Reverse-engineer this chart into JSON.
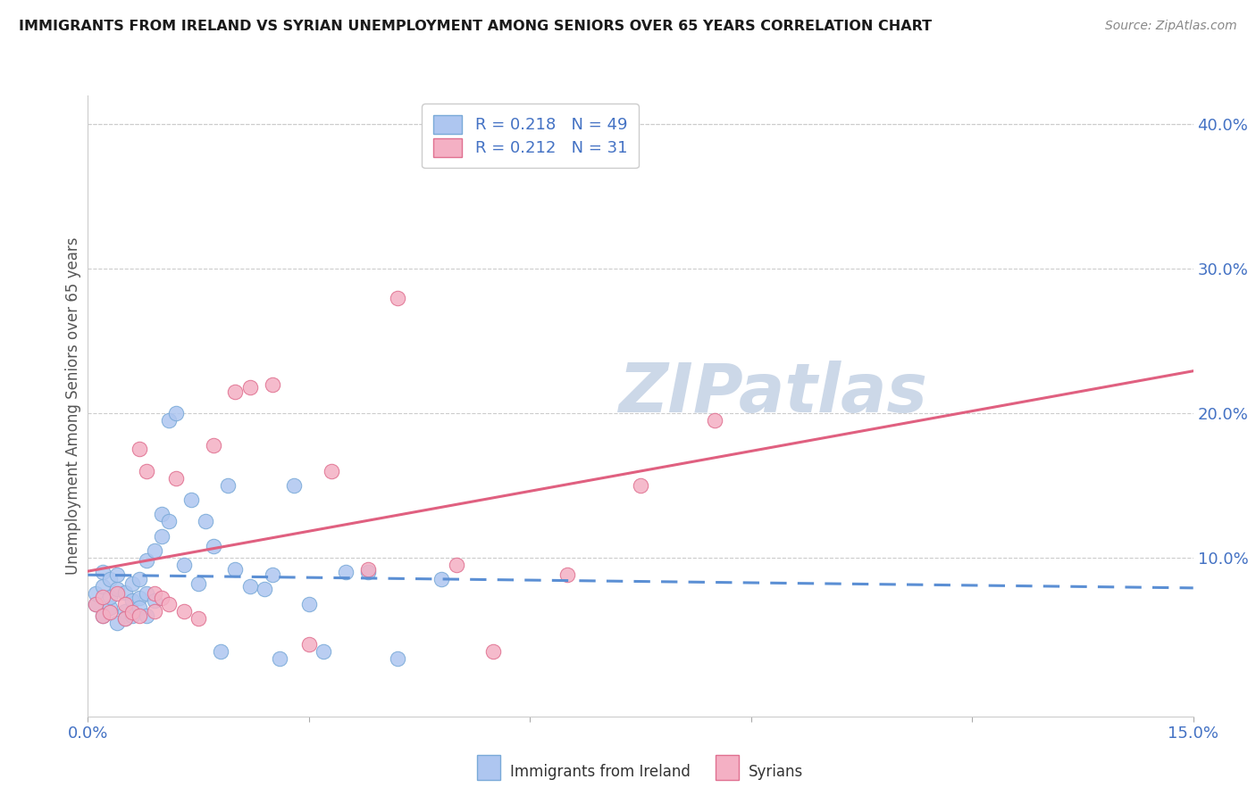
{
  "title": "IMMIGRANTS FROM IRELAND VS SYRIAN UNEMPLOYMENT AMONG SENIORS OVER 65 YEARS CORRELATION CHART",
  "source": "Source: ZipAtlas.com",
  "ylabel": "Unemployment Among Seniors over 65 years",
  "xlim": [
    0.0,
    0.15
  ],
  "ylim": [
    -0.01,
    0.42
  ],
  "ireland_color": "#aec6f0",
  "ireland_edge": "#7aaad8",
  "syrian_color": "#f4b0c4",
  "syrian_edge": "#e07090",
  "ireland_line_color": "#5b8fd4",
  "syrian_line_color": "#e06080",
  "ireland_R": 0.218,
  "ireland_N": 49,
  "syrian_R": 0.212,
  "syrian_N": 31,
  "legend_label_ireland": "Immigrants from Ireland",
  "legend_label_syrian": "Syrians",
  "ireland_x": [
    0.001,
    0.001,
    0.002,
    0.002,
    0.002,
    0.003,
    0.003,
    0.003,
    0.004,
    0.004,
    0.004,
    0.005,
    0.005,
    0.005,
    0.006,
    0.006,
    0.006,
    0.007,
    0.007,
    0.007,
    0.008,
    0.008,
    0.008,
    0.009,
    0.009,
    0.01,
    0.01,
    0.011,
    0.011,
    0.012,
    0.013,
    0.014,
    0.015,
    0.016,
    0.017,
    0.018,
    0.019,
    0.02,
    0.022,
    0.024,
    0.025,
    0.026,
    0.028,
    0.03,
    0.032,
    0.035,
    0.038,
    0.042,
    0.048
  ],
  "ireland_y": [
    0.068,
    0.075,
    0.06,
    0.08,
    0.09,
    0.065,
    0.073,
    0.085,
    0.055,
    0.078,
    0.088,
    0.063,
    0.076,
    0.058,
    0.07,
    0.082,
    0.06,
    0.072,
    0.085,
    0.065,
    0.075,
    0.098,
    0.06,
    0.105,
    0.07,
    0.115,
    0.13,
    0.125,
    0.195,
    0.2,
    0.095,
    0.14,
    0.082,
    0.125,
    0.108,
    0.035,
    0.15,
    0.092,
    0.08,
    0.078,
    0.088,
    0.03,
    0.15,
    0.068,
    0.035,
    0.09,
    0.09,
    0.03,
    0.085
  ],
  "syrian_x": [
    0.001,
    0.002,
    0.002,
    0.003,
    0.004,
    0.005,
    0.005,
    0.006,
    0.007,
    0.007,
    0.008,
    0.009,
    0.009,
    0.01,
    0.011,
    0.012,
    0.013,
    0.015,
    0.017,
    0.02,
    0.022,
    0.025,
    0.03,
    0.033,
    0.038,
    0.042,
    0.05,
    0.055,
    0.065,
    0.075,
    0.085
  ],
  "syrian_y": [
    0.068,
    0.06,
    0.073,
    0.062,
    0.075,
    0.058,
    0.068,
    0.062,
    0.175,
    0.06,
    0.16,
    0.063,
    0.075,
    0.072,
    0.068,
    0.155,
    0.063,
    0.058,
    0.178,
    0.215,
    0.218,
    0.22,
    0.04,
    0.16,
    0.092,
    0.28,
    0.095,
    0.035,
    0.088,
    0.15,
    0.195
  ],
  "background_color": "#ffffff",
  "watermark_text": "ZIPatlas",
  "watermark_color": "#ccd8e8"
}
